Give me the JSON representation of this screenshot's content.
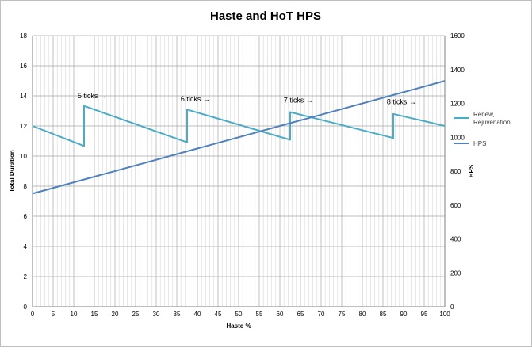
{
  "chart_data": {
    "type": "line",
    "title": "Haste and HoT HPS",
    "xlabel": "Haste %",
    "ylabel": "Total Duration",
    "y2label": "HPS",
    "xlim": [
      0,
      100
    ],
    "ylim": [
      0,
      18
    ],
    "y2lim": [
      0,
      1600
    ],
    "x_ticks": [
      0,
      5,
      10,
      15,
      20,
      25,
      30,
      35,
      40,
      45,
      50,
      55,
      60,
      65,
      70,
      75,
      80,
      85,
      90,
      95,
      100
    ],
    "y_ticks": [
      0,
      2,
      4,
      6,
      8,
      10,
      12,
      14,
      16,
      18
    ],
    "y2_ticks": [
      0,
      200,
      400,
      600,
      800,
      1000,
      1200,
      1400,
      1600
    ],
    "grid": true,
    "legend_position": "right",
    "series": [
      {
        "name": "Renew,\nRejuvenation",
        "axis": "left",
        "color": "#4bacc6",
        "points": [
          [
            0,
            12.0
          ],
          [
            12.5,
            10.67
          ],
          [
            12.5,
            13.33
          ],
          [
            37.5,
            10.91
          ],
          [
            37.5,
            13.09
          ],
          [
            62.5,
            11.08
          ],
          [
            62.5,
            12.92
          ],
          [
            87.5,
            11.2
          ],
          [
            87.5,
            12.8
          ],
          [
            100,
            12.0
          ]
        ]
      },
      {
        "name": "HPS",
        "axis": "right",
        "color": "#4f81bd",
        "points": [
          [
            0,
            667
          ],
          [
            100,
            1333
          ]
        ]
      }
    ],
    "annotations": [
      {
        "text": "5 ticks →",
        "x": 14.5,
        "y": 14.0
      },
      {
        "text": "6 ticks →",
        "x": 39.5,
        "y": 13.8
      },
      {
        "text": "7 ticks →",
        "x": 64.5,
        "y": 13.7
      },
      {
        "text": "8 ticks →",
        "x": 89.5,
        "y": 13.6
      }
    ]
  }
}
